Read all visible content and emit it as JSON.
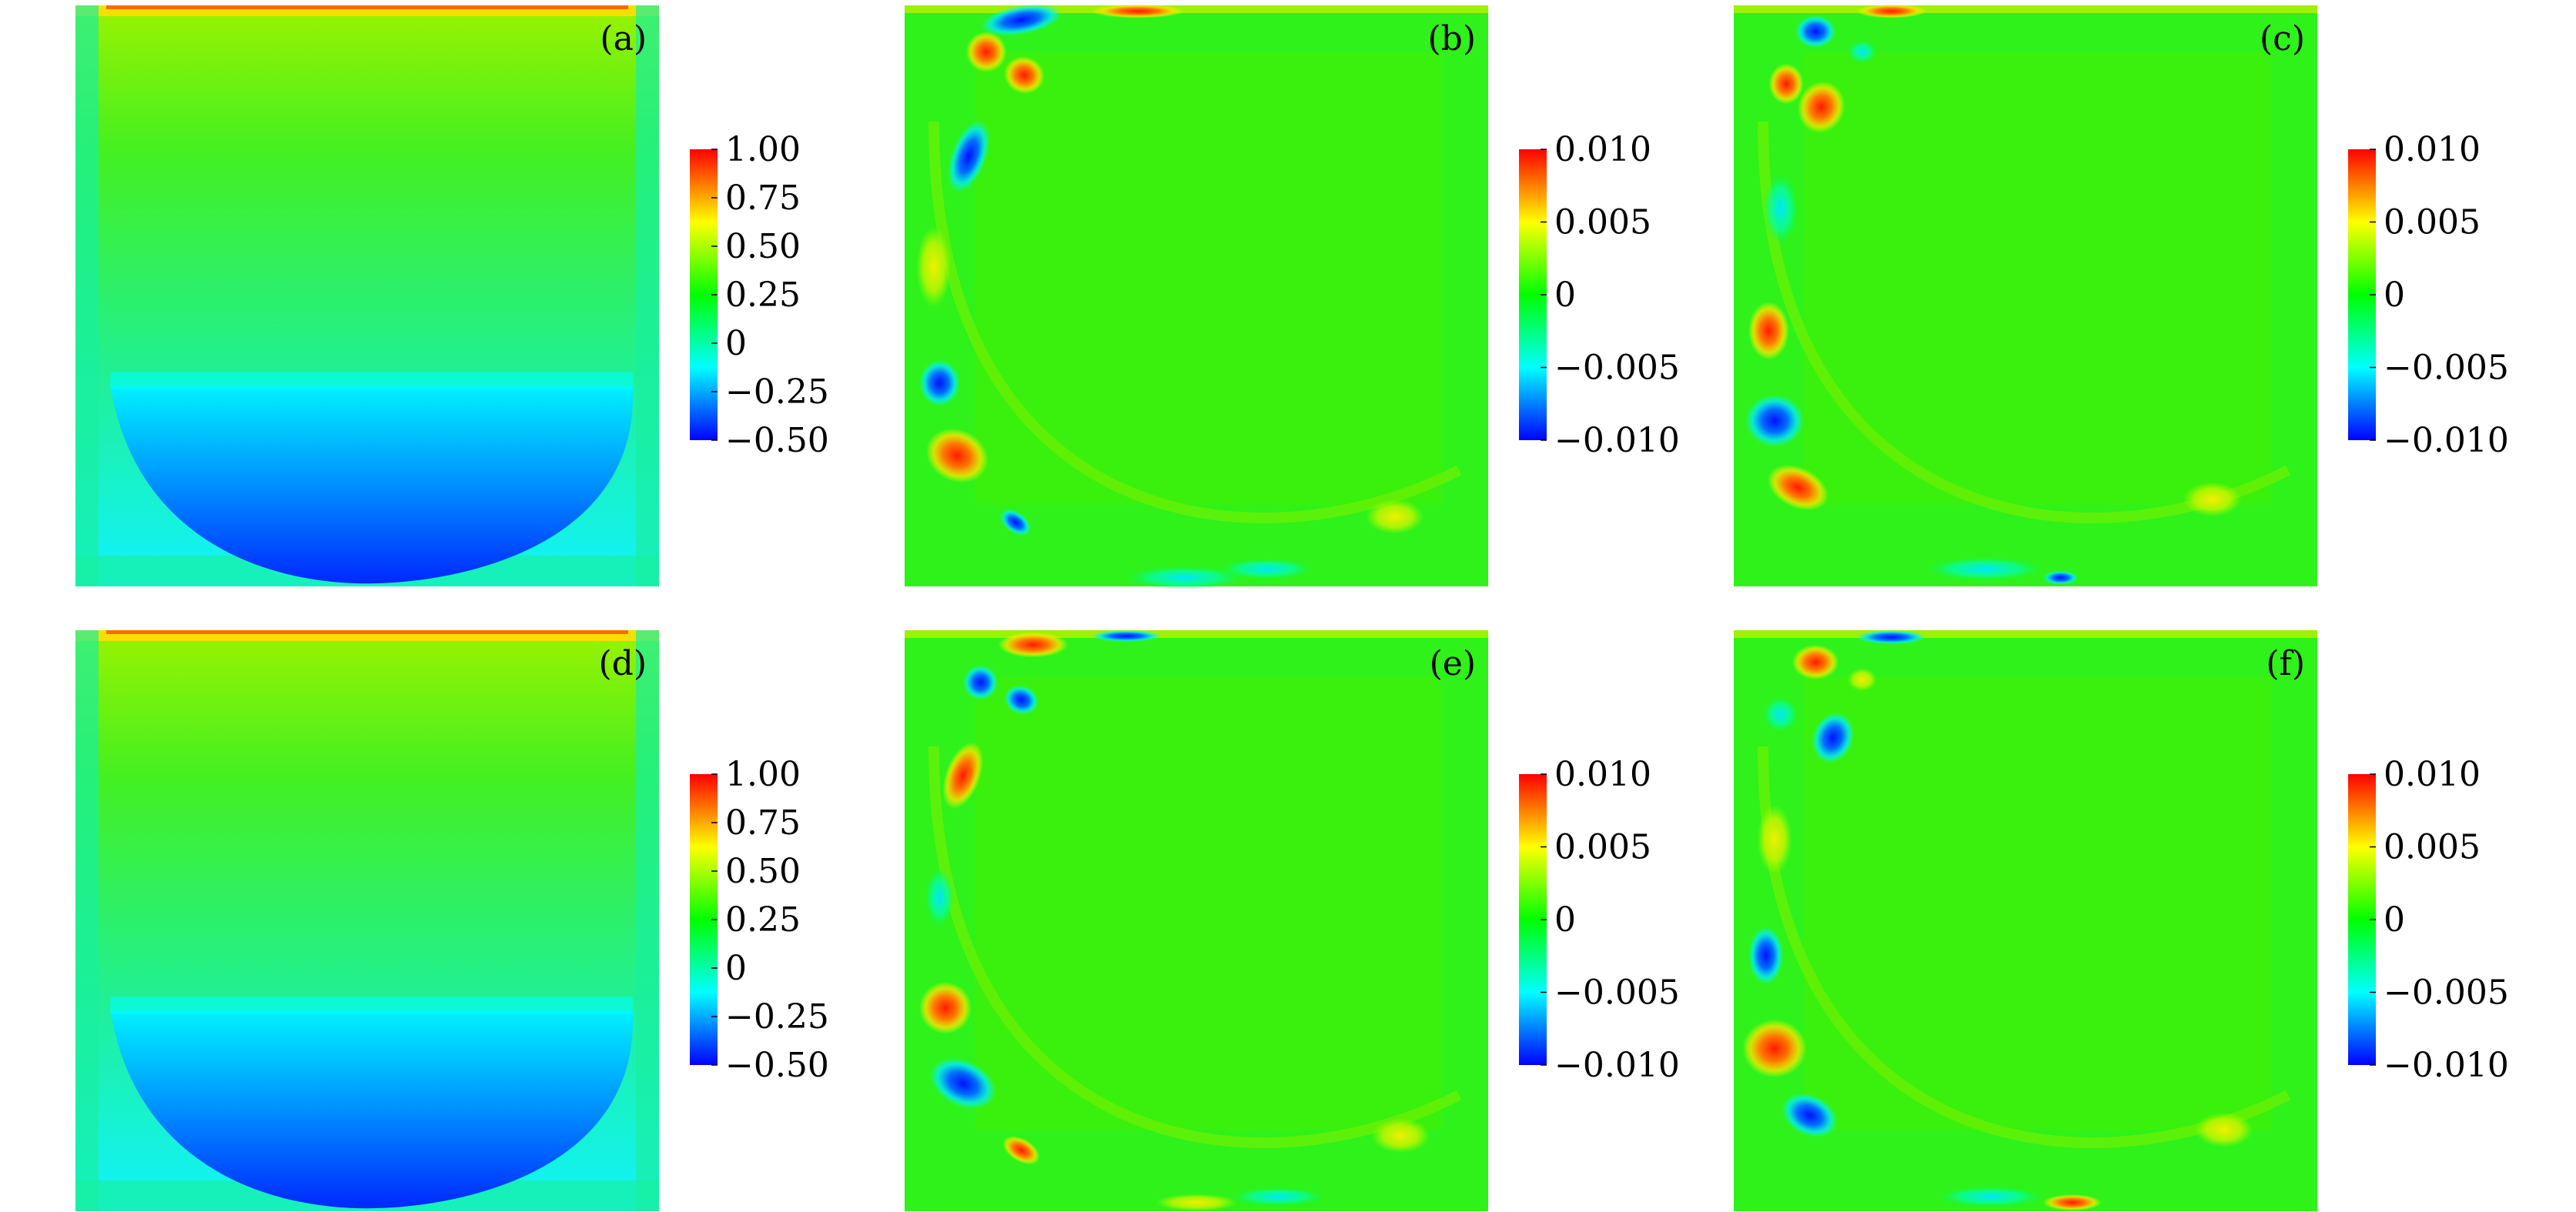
{
  "chart_data": {
    "type": "heatmap",
    "layout": "2x3 grid",
    "panels": [
      {
        "label": "(a)",
        "field": "main",
        "colorbar": {
          "range": [
            -0.5,
            1.0
          ],
          "ticks": [
            "1.00",
            "0.75",
            "0.50",
            "0.25",
            "0",
            "−0.25",
            "−0.50"
          ],
          "tick_values": [
            1.0,
            0.75,
            0.5,
            0.25,
            0,
            -0.25,
            -0.5
          ]
        }
      },
      {
        "label": "(b)",
        "field": "perturbation",
        "colorbar": {
          "range": [
            -0.01,
            0.01
          ],
          "ticks": [
            "0.010",
            "0.005",
            "0",
            "−0.005",
            "−0.010"
          ],
          "tick_values": [
            0.01,
            0.005,
            0,
            -0.005,
            -0.01
          ]
        }
      },
      {
        "label": "(c)",
        "field": "perturbation",
        "colorbar": {
          "range": [
            -0.01,
            0.01
          ],
          "ticks": [
            "0.010",
            "0.005",
            "0",
            "−0.005",
            "−0.010"
          ],
          "tick_values": [
            0.01,
            0.005,
            0,
            -0.005,
            -0.01
          ]
        }
      },
      {
        "label": "(d)",
        "field": "main",
        "colorbar": {
          "range": [
            -0.5,
            1.0
          ],
          "ticks": [
            "1.00",
            "0.75",
            "0.50",
            "0.25",
            "0",
            "−0.25",
            "−0.50"
          ],
          "tick_values": [
            1.0,
            0.75,
            0.5,
            0.25,
            0,
            -0.25,
            -0.5
          ]
        }
      },
      {
        "label": "(e)",
        "field": "perturbation",
        "colorbar": {
          "range": [
            -0.01,
            0.01
          ],
          "ticks": [
            "0.010",
            "0.005",
            "0",
            "−0.005",
            "−0.010"
          ],
          "tick_values": [
            0.01,
            0.005,
            0,
            -0.005,
            -0.01
          ]
        }
      },
      {
        "label": "(f)",
        "field": "perturbation",
        "colorbar": {
          "range": [
            -0.01,
            0.01
          ],
          "ticks": [
            "0.010",
            "0.005",
            "0",
            "−0.005",
            "−0.010"
          ],
          "tick_values": [
            0.01,
            0.005,
            0,
            -0.005,
            -0.01
          ]
        }
      }
    ],
    "colormap": [
      "#0000ff",
      "#00ffff",
      "#00ff00",
      "#ffff00",
      "#ff0000"
    ],
    "legend": "colorbar right of each panel"
  }
}
